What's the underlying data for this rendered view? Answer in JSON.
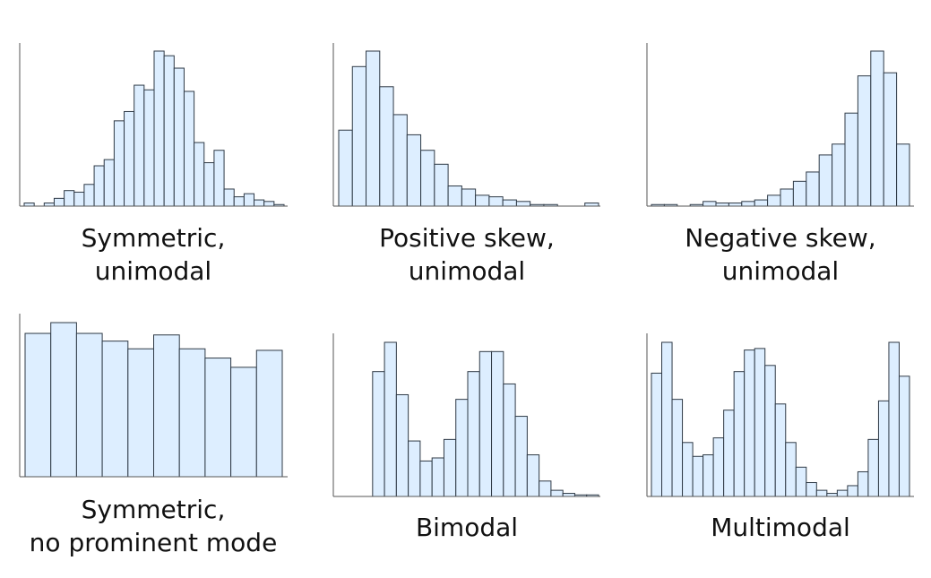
{
  "chart_data": [
    {
      "type": "bar",
      "caption_lines": [
        "Symmetric,",
        "unimodal"
      ],
      "values": [
        2,
        0,
        2,
        5,
        10,
        9,
        14,
        26,
        30,
        55,
        61,
        78,
        75,
        100,
        97,
        89,
        74,
        41,
        28,
        36,
        11,
        6,
        8,
        4,
        3,
        1
      ],
      "ylim": [
        0,
        100
      ],
      "colors": {
        "bar_fill": "#ddeeff",
        "bar_edge": "#2f3a46",
        "axis": "#555555"
      }
    },
    {
      "type": "bar",
      "caption_lines": [
        "Positive skew,",
        "unimodal"
      ],
      "values": [
        49,
        90,
        100,
        77,
        59,
        46,
        36,
        27,
        13,
        11,
        7,
        6,
        4,
        3,
        1,
        1,
        0,
        0,
        2
      ],
      "ylim": [
        0,
        100
      ],
      "colors": {
        "bar_fill": "#ddeeff",
        "bar_edge": "#2f3a46",
        "axis": "#555555"
      }
    },
    {
      "type": "bar",
      "caption_lines": [
        "Negative skew,",
        "unimodal"
      ],
      "values": [
        1,
        1,
        0,
        1,
        3,
        2,
        2,
        3,
        4,
        7,
        11,
        16,
        22,
        33,
        40,
        60,
        84,
        100,
        86,
        40
      ],
      "ylim": [
        0,
        100
      ],
      "colors": {
        "bar_fill": "#ddeeff",
        "bar_edge": "#2f3a46",
        "axis": "#555555"
      }
    },
    {
      "type": "bar",
      "caption_lines": [
        "Symmetric,",
        "no prominent mode"
      ],
      "values": [
        93,
        100,
        93,
        88,
        83,
        92,
        83,
        77,
        71,
        82
      ],
      "ylim": [
        0,
        100
      ],
      "colors": {
        "bar_fill": "#ddeeff",
        "bar_edge": "#2f3a46",
        "axis": "#555555"
      }
    },
    {
      "type": "bar",
      "caption_lines": [
        "Bimodal"
      ],
      "values": [
        0,
        0,
        0,
        81,
        100,
        66,
        36,
        23,
        25,
        37,
        63,
        81,
        94,
        94,
        73,
        52,
        27,
        10,
        4,
        2,
        1,
        1
      ],
      "ylim": [
        0,
        100
      ],
      "colors": {
        "bar_fill": "#ddeeff",
        "bar_edge": "#2f3a46",
        "axis": "#555555"
      }
    },
    {
      "type": "bar",
      "caption_lines": [
        "Multimodal"
      ],
      "values": [
        80,
        100,
        63,
        35,
        26,
        27,
        38,
        56,
        81,
        95,
        96,
        85,
        60,
        35,
        19,
        9,
        4,
        2,
        4,
        7,
        16,
        37,
        62,
        100,
        78
      ],
      "ylim": [
        0,
        100
      ],
      "colors": {
        "bar_fill": "#ddeeff",
        "bar_edge": "#2f3a46",
        "axis": "#555555"
      }
    }
  ]
}
